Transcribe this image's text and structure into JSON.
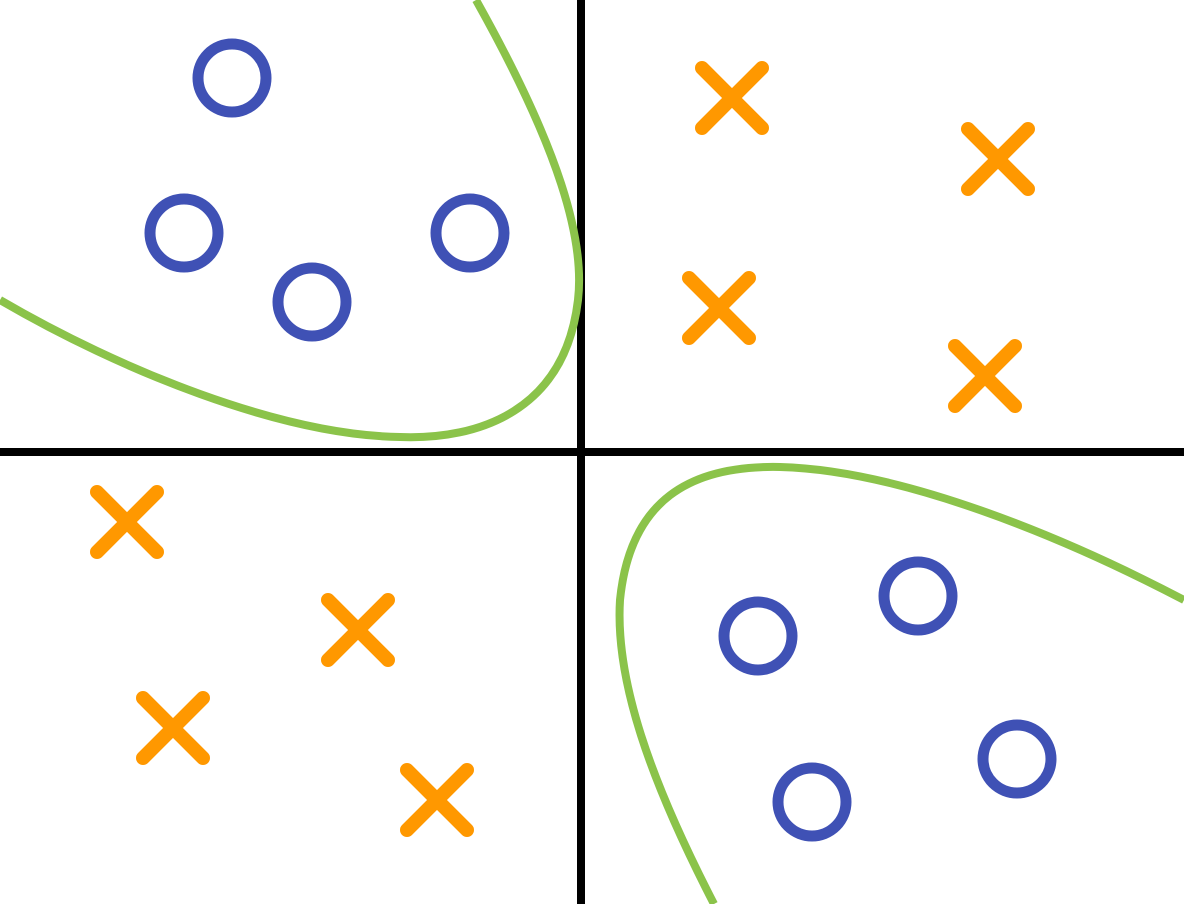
{
  "diagram": {
    "type": "xor-classification",
    "description_visible_text": "",
    "colors": {
      "axes": "#000000",
      "boundary": "#8bc34a",
      "class_o": "#3f51b5",
      "class_x": "#ff9800",
      "background": "#ffffff"
    },
    "regions": [
      {
        "quadrant": "top-left",
        "class": "o",
        "count": 4
      },
      {
        "quadrant": "top-right",
        "class": "x",
        "count": 4
      },
      {
        "quadrant": "bottom-left",
        "class": "x",
        "count": 4
      },
      {
        "quadrant": "bottom-right",
        "class": "o",
        "count": 4
      }
    ],
    "icons": {
      "class_o": "circle-marker",
      "class_x": "cross-marker"
    }
  }
}
